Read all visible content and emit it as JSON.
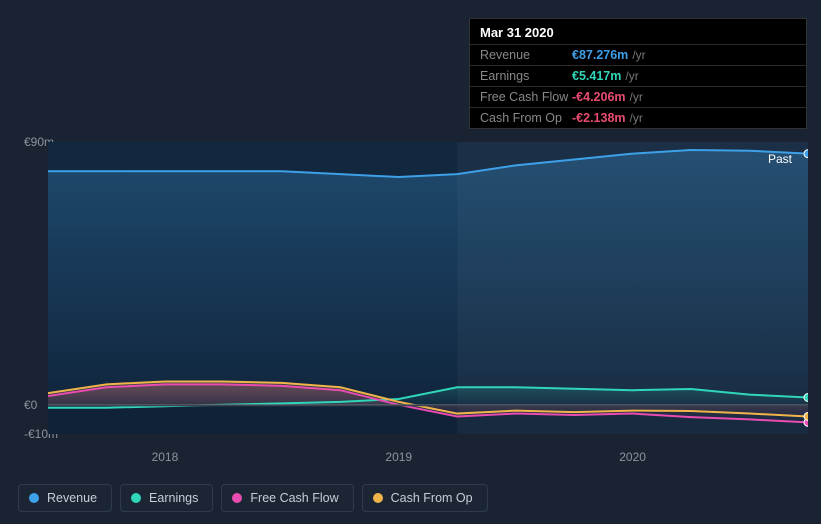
{
  "tooltip": {
    "date": "Mar 31 2020",
    "rows": [
      {
        "label": "Revenue",
        "value": "€87.276m",
        "unit": "/yr",
        "color": "#3ea0e8"
      },
      {
        "label": "Earnings",
        "value": "€5.417m",
        "unit": "/yr",
        "color": "#2fd6b8"
      },
      {
        "label": "Free Cash Flow",
        "value": "-€4.206m",
        "unit": "/yr",
        "color": "#e84c6f"
      },
      {
        "label": "Cash From Op",
        "value": "-€2.138m",
        "unit": "/yr",
        "color": "#e84c6f"
      }
    ]
  },
  "chart": {
    "type": "area-line",
    "background": "#1a2332",
    "plot_gradient_top": "#12283f",
    "plot_gradient_bottom": "#0f2238",
    "highlight_band_color": "rgba(255,255,255,0.04)",
    "zero_line_color": "#666c75",
    "neg_band_top_color": "#3a4350",
    "past_label": "Past",
    "y_range": [
      -10,
      90
    ],
    "y_ticks": [
      {
        "v": 90,
        "label": "€90m"
      },
      {
        "v": 0,
        "label": "€0"
      },
      {
        "v": -10,
        "label": "-€10m"
      }
    ],
    "x_domain": [
      2017.5,
      2020.75
    ],
    "x_ticks": [
      {
        "v": 2018,
        "label": "2018"
      },
      {
        "v": 2019,
        "label": "2019"
      },
      {
        "v": 2020,
        "label": "2020"
      }
    ],
    "highlight_x": [
      2019.25,
      2020.75
    ],
    "series": [
      {
        "name": "Revenue",
        "color": "#3ea0e8",
        "fill_top": "rgba(62,160,232,0.28)",
        "fill_bottom": "rgba(62,160,232,0.02)",
        "line_width": 2,
        "points": [
          [
            2017.5,
            80
          ],
          [
            2017.75,
            80
          ],
          [
            2018,
            80
          ],
          [
            2018.25,
            80
          ],
          [
            2018.5,
            80
          ],
          [
            2018.75,
            79
          ],
          [
            2019,
            78
          ],
          [
            2019.25,
            79
          ],
          [
            2019.5,
            82
          ],
          [
            2019.75,
            84
          ],
          [
            2020,
            86
          ],
          [
            2020.25,
            87.276
          ],
          [
            2020.5,
            87
          ],
          [
            2020.75,
            86
          ]
        ]
      },
      {
        "name": "Earnings",
        "color": "#2fd6b8",
        "fill_top": "rgba(47,214,184,0.18)",
        "fill_bottom": "rgba(47,214,184,0.0)",
        "line_width": 2,
        "points": [
          [
            2017.5,
            -1
          ],
          [
            2017.75,
            -1
          ],
          [
            2018,
            -0.5
          ],
          [
            2018.25,
            0
          ],
          [
            2018.5,
            0.5
          ],
          [
            2018.75,
            1
          ],
          [
            2019,
            2
          ],
          [
            2019.25,
            6
          ],
          [
            2019.5,
            6
          ],
          [
            2019.75,
            5.5
          ],
          [
            2020,
            5
          ],
          [
            2020.25,
            5.417
          ],
          [
            2020.5,
            3.5
          ],
          [
            2020.75,
            2.5
          ]
        ]
      },
      {
        "name": "Free Cash Flow",
        "color": "#e84cb0",
        "fill_top": "rgba(232,76,176,0.22)",
        "fill_bottom": "rgba(232,76,176,0.0)",
        "line_width": 2,
        "points": [
          [
            2017.5,
            3
          ],
          [
            2017.75,
            6
          ],
          [
            2018,
            7
          ],
          [
            2018.25,
            7
          ],
          [
            2018.5,
            6.5
          ],
          [
            2018.75,
            5
          ],
          [
            2019,
            0
          ],
          [
            2019.25,
            -4
          ],
          [
            2019.5,
            -3
          ],
          [
            2019.75,
            -3.5
          ],
          [
            2020,
            -3
          ],
          [
            2020.25,
            -4.206
          ],
          [
            2020.5,
            -5
          ],
          [
            2020.75,
            -6
          ]
        ]
      },
      {
        "name": "Cash From Op",
        "color": "#f0b44a",
        "fill_top": "rgba(240,180,74,0.22)",
        "fill_bottom": "rgba(240,180,74,0.0)",
        "line_width": 2,
        "points": [
          [
            2017.5,
            4
          ],
          [
            2017.75,
            7
          ],
          [
            2018,
            8
          ],
          [
            2018.25,
            8
          ],
          [
            2018.5,
            7.5
          ],
          [
            2018.75,
            6
          ],
          [
            2019,
            1
          ],
          [
            2019.25,
            -3
          ],
          [
            2019.5,
            -2
          ],
          [
            2019.75,
            -2.5
          ],
          [
            2020,
            -2
          ],
          [
            2020.25,
            -2.138
          ],
          [
            2020.5,
            -3
          ],
          [
            2020.75,
            -4
          ]
        ]
      }
    ],
    "marker_x": 2020.75
  },
  "legend": [
    {
      "label": "Revenue",
      "color": "#3ea0e8"
    },
    {
      "label": "Earnings",
      "color": "#2fd6b8"
    },
    {
      "label": "Free Cash Flow",
      "color": "#e84cb0"
    },
    {
      "label": "Cash From Op",
      "color": "#f0b44a"
    }
  ]
}
